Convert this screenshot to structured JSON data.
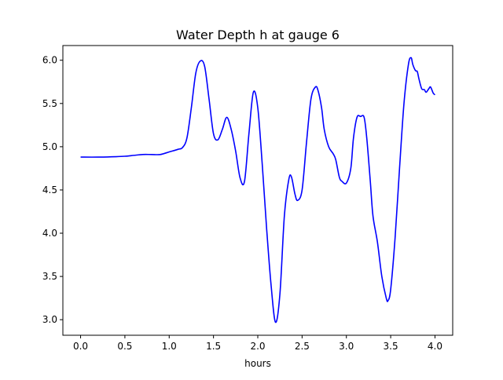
{
  "chart_data": {
    "type": "line",
    "title": "Water Depth h at gauge 6",
    "xlabel": "hours",
    "ylabel": "",
    "xlim": [
      -0.2,
      4.2
    ],
    "ylim": [
      2.82,
      6.17
    ],
    "xticks": [
      0.0,
      0.5,
      1.0,
      1.5,
      2.0,
      2.5,
      3.0,
      3.5,
      4.0
    ],
    "xtick_labels": [
      "0.0",
      "0.5",
      "1.0",
      "1.5",
      "2.0",
      "2.5",
      "3.0",
      "3.5",
      "4.0"
    ],
    "yticks": [
      3.0,
      3.5,
      4.0,
      4.5,
      5.0,
      5.5,
      6.0
    ],
    "ytick_labels": [
      "3.0",
      "3.5",
      "4.0",
      "4.5",
      "5.0",
      "5.5",
      "6.0"
    ],
    "grid": false,
    "series": [
      {
        "color": "#0000ff",
        "x": [
          0.0,
          0.2,
          0.4,
          0.5,
          0.6,
          0.7,
          0.8,
          0.9,
          1.0,
          1.1,
          1.15,
          1.2,
          1.25,
          1.3,
          1.35,
          1.4,
          1.45,
          1.5,
          1.55,
          1.6,
          1.65,
          1.7,
          1.75,
          1.8,
          1.85,
          1.9,
          1.95,
          2.0,
          2.05,
          2.1,
          2.15,
          2.2,
          2.25,
          2.3,
          2.35,
          2.38,
          2.42,
          2.45,
          2.5,
          2.55,
          2.6,
          2.65,
          2.68,
          2.72,
          2.75,
          2.8,
          2.85,
          2.88,
          2.92,
          2.95,
          3.0,
          3.05,
          3.08,
          3.12,
          3.16,
          3.2,
          3.23,
          3.27,
          3.3,
          3.35,
          3.4,
          3.45,
          3.47,
          3.5,
          3.55,
          3.6,
          3.65,
          3.7,
          3.73,
          3.75,
          3.78,
          3.8,
          3.82,
          3.85,
          3.88,
          3.9,
          3.93,
          3.95,
          3.98,
          4.0
        ],
        "y": [
          4.88,
          4.88,
          4.885,
          4.89,
          4.9,
          4.91,
          4.91,
          4.91,
          4.94,
          4.97,
          4.99,
          5.1,
          5.45,
          5.85,
          5.99,
          5.93,
          5.55,
          5.15,
          5.08,
          5.2,
          5.34,
          5.2,
          4.95,
          4.64,
          4.6,
          5.15,
          5.63,
          5.45,
          4.8,
          4.05,
          3.4,
          2.97,
          3.3,
          4.2,
          4.62,
          4.65,
          4.45,
          4.38,
          4.5,
          5.05,
          5.55,
          5.69,
          5.65,
          5.45,
          5.2,
          5.0,
          4.92,
          4.85,
          4.65,
          4.6,
          4.58,
          4.75,
          5.1,
          5.34,
          5.35,
          5.34,
          5.1,
          4.6,
          4.2,
          3.9,
          3.5,
          3.25,
          3.22,
          3.35,
          3.95,
          4.75,
          5.5,
          5.95,
          6.03,
          5.95,
          5.88,
          5.87,
          5.78,
          5.67,
          5.66,
          5.63,
          5.67,
          5.69,
          5.62,
          5.6
        ]
      }
    ]
  }
}
